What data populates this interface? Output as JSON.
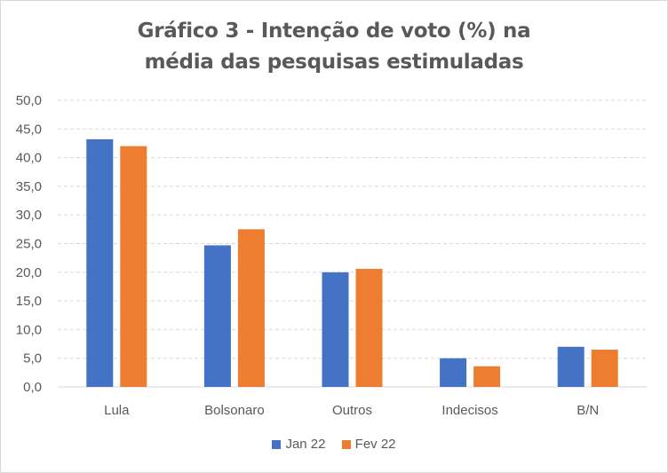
{
  "chart_data": {
    "type": "bar",
    "title_line1": "Gráfico 3 - Intenção de voto (%) na",
    "title_line2": "média das pesquisas estimuladas",
    "categories": [
      "Lula",
      "Bolsonaro",
      "Outros",
      "Indecisos",
      "B/N"
    ],
    "series": [
      {
        "name": "Jan 22",
        "color": "#4472c4",
        "values": [
          43.2,
          24.7,
          20.0,
          5.0,
          7.0
        ]
      },
      {
        "name": "Fev 22",
        "color": "#ed7d31",
        "values": [
          42.0,
          27.5,
          20.6,
          3.6,
          6.5
        ]
      }
    ],
    "yticks": [
      "0,0",
      "5,0",
      "10,0",
      "15,0",
      "20,0",
      "25,0",
      "30,0",
      "35,0",
      "40,0",
      "45,0",
      "50,0"
    ],
    "ylim": [
      0,
      50
    ],
    "grid": true,
    "legend_position": "bottom"
  }
}
